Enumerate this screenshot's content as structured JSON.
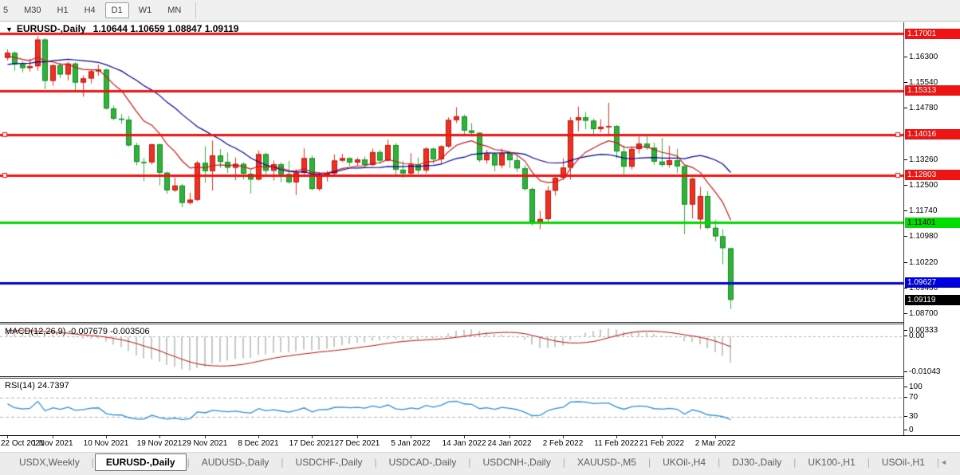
{
  "toolbar": {
    "buttons": [
      "5",
      "M30",
      "H1",
      "H4",
      "D1",
      "W1",
      "MN"
    ],
    "active": "D1"
  },
  "window_title": {
    "dropdown_glyph": "▼",
    "symbol": "EURUSD-,Daily",
    "ohlc": "1.10644 1.10659 1.08847 1.09119"
  },
  "price_axis": {
    "ticks": [
      {
        "text": "1.16300",
        "p": 1.163
      },
      {
        "text": "1.15540",
        "p": 1.1554
      },
      {
        "text": "1.14780",
        "p": 1.1478
      },
      {
        "text": "1.13260",
        "p": 1.1326
      },
      {
        "text": "1.12500",
        "p": 1.125
      },
      {
        "text": "1.11740",
        "p": 1.1174
      },
      {
        "text": "1.10980",
        "p": 1.1098
      },
      {
        "text": "1.10220",
        "p": 1.1022
      },
      {
        "text": "1.09460",
        "p": 1.0946
      },
      {
        "text": "1.08700",
        "p": 1.087
      }
    ],
    "badges": [
      {
        "text": "1.17001",
        "p": 1.17001,
        "bg": "#ee1414",
        "fg": "#ffffff"
      },
      {
        "text": "1.15313",
        "p": 1.15313,
        "bg": "#ee1414",
        "fg": "#ffffff"
      },
      {
        "text": "1.14016",
        "p": 1.14016,
        "bg": "#ee1414",
        "fg": "#ffffff"
      },
      {
        "text": "1.12803",
        "p": 1.12803,
        "bg": "#ee1414",
        "fg": "#ffffff"
      },
      {
        "text": "1.11401",
        "p": 1.11401,
        "bg": "#00dd00",
        "fg": "#000000"
      },
      {
        "text": "1.09627",
        "p": 1.09627,
        "bg": "#0000dd",
        "fg": "#ffffff"
      },
      {
        "text": "1.09119",
        "p": 1.09119,
        "bg": "#000000",
        "fg": "#ffffff"
      }
    ]
  },
  "time_axis": {
    "labels": [
      {
        "text": "22 Oct 2021",
        "i": 0
      },
      {
        "text": "1 Nov 2021",
        "i": 6
      },
      {
        "text": "10 Nov 2021",
        "i": 13
      },
      {
        "text": "19 Nov 2021",
        "i": 20
      },
      {
        "text": "29 Nov 2021",
        "i": 26
      },
      {
        "text": "8 Dec 2021",
        "i": 33
      },
      {
        "text": "17 Dec 2021",
        "i": 40
      },
      {
        "text": "27 Dec 2021",
        "i": 46
      },
      {
        "text": "5 Jan 2022",
        "i": 53
      },
      {
        "text": "14 Jan 2022",
        "i": 60
      },
      {
        "text": "24 Jan 2022",
        "i": 66
      },
      {
        "text": "2 Feb 2022",
        "i": 73
      },
      {
        "text": "11 Feb 2022",
        "i": 80
      },
      {
        "text": "21 Feb 2022",
        "i": 86
      },
      {
        "text": "2 Mar 2022",
        "i": 93
      }
    ]
  },
  "indicators": {
    "macd": {
      "name": "MACD(12,26,9)",
      "main": "-0.007679",
      "signal": "-0.003506",
      "ticks": [
        {
          "text": "0.00333",
          "v": 0.00333
        },
        {
          "text": "0.00",
          "v": 0.0
        },
        {
          "text": "-0.01043",
          "v": -0.01043
        }
      ]
    },
    "rsi": {
      "name": "RSI(14)",
      "value": "24.7397",
      "levels": [
        70,
        30
      ],
      "ticks": [
        {
          "text": "100",
          "v": 100
        },
        {
          "text": "70",
          "v": 70
        },
        {
          "text": "30",
          "v": 30
        },
        {
          "text": "0",
          "v": 0
        }
      ]
    }
  },
  "tabs": {
    "items": [
      "USDX,Weekly",
      "EURUSD-,Daily",
      "AUDUSD-,Daily",
      "USDCHF-,Daily",
      "USDCAD-,Daily",
      "USDCNH-,Daily",
      "XAUUSD-,M5",
      "UKOil-,H4",
      "DJ30-,Daily",
      "UK100-,H1",
      "USOil-,H1"
    ],
    "active_index": 1,
    "scroll_left_glyph": "◄",
    "scroll_right_glyph": "►"
  },
  "colors": {
    "bull_candle": "#ea3323",
    "bull_border": "#bb150a",
    "bear_candle": "#2fb33a",
    "bear_border": "#1d8426",
    "hline_red": "#f21212",
    "hline_green": "#00dd00",
    "hline_blue": "#0000dd",
    "ma_fast": "#c91818",
    "ma_slow": "#000096",
    "macd_bar": "#c8c8c8",
    "macd_signal": "#b40f0f",
    "rsi_line": "#2e8fd6",
    "level_dash": "#b0b0b0"
  },
  "chart_data": {
    "type": "candlestick",
    "symbol": "EURUSD-",
    "timeframe": "Daily",
    "ohlc_current": {
      "o": 1.10644,
      "h": 1.10659,
      "l": 1.08847,
      "c": 1.09119
    },
    "hlines": [
      {
        "p": 1.17001,
        "color": "#f21212",
        "handles": false
      },
      {
        "p": 1.15313,
        "color": "#f21212",
        "handles": false
      },
      {
        "p": 1.14016,
        "color": "#f21212",
        "handles": true
      },
      {
        "p": 1.12803,
        "color": "#f21212",
        "handles": true
      },
      {
        "p": 1.11401,
        "color": "#00dd00",
        "handles": false
      },
      {
        "p": 1.09627,
        "color": "#0000dd",
        "handles": false
      }
    ],
    "ma_fast": {
      "type": "ema",
      "period": 10
    },
    "ma_slow": {
      "type": "sma",
      "period": 21
    },
    "macd_params": [
      12,
      26,
      9
    ],
    "rsi_period": 14,
    "warmup_closes": [
      1.1579,
      1.1562,
      1.1558,
      1.1546,
      1.1551,
      1.1533,
      1.1555,
      1.1586,
      1.1594,
      1.1592,
      1.1559,
      1.1531,
      1.1542,
      1.156,
      1.1601,
      1.1612,
      1.1632,
      1.1654,
      1.1633,
      1.1626,
      1.165,
      1.1655,
      1.1622,
      1.1641,
      1.1649,
      1.1635
    ],
    "candles": [
      [
        1.1628,
        1.1653,
        1.162,
        1.1643
      ],
      [
        1.1643,
        1.1647,
        1.159,
        1.1609
      ],
      [
        1.1609,
        1.1618,
        1.1585,
        1.1598
      ],
      [
        1.1598,
        1.1625,
        1.1587,
        1.1603
      ],
      [
        1.1603,
        1.1692,
        1.159,
        1.1682
      ],
      [
        1.1682,
        1.1687,
        1.1535,
        1.156
      ],
      [
        1.156,
        1.1609,
        1.1545,
        1.1606
      ],
      [
        1.1606,
        1.1614,
        1.1568,
        1.1579
      ],
      [
        1.1579,
        1.1616,
        1.1561,
        1.1611
      ],
      [
        1.1611,
        1.1616,
        1.1527,
        1.1555
      ],
      [
        1.1555,
        1.1576,
        1.1513,
        1.1567
      ],
      [
        1.1567,
        1.1594,
        1.1552,
        1.1588
      ],
      [
        1.1588,
        1.1608,
        1.1575,
        1.1593
      ],
      [
        1.1593,
        1.1595,
        1.1475,
        1.1478
      ],
      [
        1.1478,
        1.1486,
        1.1443,
        1.1448
      ],
      [
        1.1448,
        1.1461,
        1.1433,
        1.1445
      ],
      [
        1.1445,
        1.1456,
        1.1365,
        1.1369
      ],
      [
        1.1369,
        1.1377,
        1.1309,
        1.132
      ],
      [
        1.132,
        1.1332,
        1.1263,
        1.1319
      ],
      [
        1.1319,
        1.1374,
        1.1312,
        1.1372
      ],
      [
        1.1372,
        1.1374,
        1.125,
        1.1288
      ],
      [
        1.1288,
        1.1291,
        1.1226,
        1.1236
      ],
      [
        1.1236,
        1.1274,
        1.1231,
        1.125
      ],
      [
        1.125,
        1.1255,
        1.1186,
        1.1199
      ],
      [
        1.1199,
        1.1229,
        1.1194,
        1.1208
      ],
      [
        1.1208,
        1.1323,
        1.1204,
        1.1317
      ],
      [
        1.1317,
        1.1366,
        1.1258,
        1.1293
      ],
      [
        1.1293,
        1.1383,
        1.1235,
        1.1339
      ],
      [
        1.1339,
        1.1358,
        1.1302,
        1.132
      ],
      [
        1.132,
        1.1348,
        1.1287,
        1.1303
      ],
      [
        1.1303,
        1.1333,
        1.1266,
        1.1314
      ],
      [
        1.1314,
        1.1319,
        1.1268,
        1.1285
      ],
      [
        1.1285,
        1.1296,
        1.1227,
        1.1268
      ],
      [
        1.1268,
        1.1354,
        1.1265,
        1.1343
      ],
      [
        1.1343,
        1.1347,
        1.1283,
        1.1294
      ],
      [
        1.1294,
        1.1324,
        1.1265,
        1.1313
      ],
      [
        1.1313,
        1.1319,
        1.126,
        1.1284
      ],
      [
        1.1284,
        1.1323,
        1.1256,
        1.126
      ],
      [
        1.126,
        1.1298,
        1.1222,
        1.1288
      ],
      [
        1.1288,
        1.136,
        1.1282,
        1.1331
      ],
      [
        1.1331,
        1.1339,
        1.1237,
        1.124
      ],
      [
        1.124,
        1.129,
        1.1234,
        1.128
      ],
      [
        1.128,
        1.1294,
        1.1262,
        1.1286
      ],
      [
        1.1286,
        1.1342,
        1.1279,
        1.1324
      ],
      [
        1.1324,
        1.1344,
        1.132,
        1.1331
      ],
      [
        1.1331,
        1.1333,
        1.1308,
        1.1318
      ],
      [
        1.1318,
        1.1333,
        1.1309,
        1.1327
      ],
      [
        1.1327,
        1.1336,
        1.1304,
        1.1311
      ],
      [
        1.1311,
        1.136,
        1.1307,
        1.1349
      ],
      [
        1.1349,
        1.1356,
        1.1314,
        1.1324
      ],
      [
        1.1324,
        1.1386,
        1.1321,
        1.137
      ],
      [
        1.137,
        1.1376,
        1.1279,
        1.1297
      ],
      [
        1.1297,
        1.1323,
        1.1272,
        1.1286
      ],
      [
        1.1286,
        1.1346,
        1.1278,
        1.1312
      ],
      [
        1.1312,
        1.1333,
        1.1285,
        1.1295
      ],
      [
        1.1295,
        1.1364,
        1.1287,
        1.1359
      ],
      [
        1.1359,
        1.1362,
        1.1315,
        1.1328
      ],
      [
        1.1328,
        1.1369,
        1.1314,
        1.1366
      ],
      [
        1.1366,
        1.1452,
        1.1361,
        1.1444
      ],
      [
        1.1444,
        1.1482,
        1.1435,
        1.1455
      ],
      [
        1.1455,
        1.146,
        1.1399,
        1.1413
      ],
      [
        1.1413,
        1.1435,
        1.1395,
        1.1406
      ],
      [
        1.1406,
        1.1408,
        1.1319,
        1.1325
      ],
      [
        1.1325,
        1.1356,
        1.1315,
        1.1343
      ],
      [
        1.1343,
        1.1348,
        1.1292,
        1.131
      ],
      [
        1.131,
        1.136,
        1.1301,
        1.1345
      ],
      [
        1.1345,
        1.1349,
        1.1302,
        1.1325
      ],
      [
        1.1325,
        1.1339,
        1.1291,
        1.1301
      ],
      [
        1.1301,
        1.131,
        1.1235,
        1.124
      ],
      [
        1.124,
        1.1244,
        1.1131,
        1.1143
      ],
      [
        1.1143,
        1.1175,
        1.1121,
        1.1151
      ],
      [
        1.1151,
        1.1248,
        1.1144,
        1.1235
      ],
      [
        1.1235,
        1.1279,
        1.1221,
        1.1273
      ],
      [
        1.1273,
        1.133,
        1.1267,
        1.1303
      ],
      [
        1.1303,
        1.1452,
        1.1267,
        1.1443
      ],
      [
        1.1443,
        1.1484,
        1.1411,
        1.1452
      ],
      [
        1.1452,
        1.1468,
        1.1417,
        1.1442
      ],
      [
        1.1442,
        1.1448,
        1.1402,
        1.1417
      ],
      [
        1.1417,
        1.1446,
        1.1408,
        1.1424
      ],
      [
        1.1424,
        1.1495,
        1.1396,
        1.1426
      ],
      [
        1.1426,
        1.1429,
        1.1331,
        1.1351
      ],
      [
        1.1351,
        1.1369,
        1.1281,
        1.1306
      ],
      [
        1.1306,
        1.1367,
        1.1298,
        1.1358
      ],
      [
        1.1358,
        1.1395,
        1.1345,
        1.1374
      ],
      [
        1.1374,
        1.1402,
        1.1355,
        1.1362
      ],
      [
        1.1362,
        1.1377,
        1.1312,
        1.1321
      ],
      [
        1.1321,
        1.1391,
        1.1305,
        1.1311
      ],
      [
        1.1311,
        1.1368,
        1.1303,
        1.1325
      ],
      [
        1.1325,
        1.1359,
        1.1287,
        1.1307
      ],
      [
        1.1307,
        1.1308,
        1.1106,
        1.1194
      ],
      [
        1.1194,
        1.1274,
        1.1152,
        1.127
      ],
      [
        1.115,
        1.1246,
        1.1122,
        1.1219
      ],
      [
        1.1219,
        1.1234,
        1.1121,
        1.1125
      ],
      [
        1.1125,
        1.1148,
        1.1085,
        1.11
      ],
      [
        1.11,
        1.1121,
        1.1017,
        1.1065
      ],
      [
        1.10644,
        1.10659,
        1.08847,
        1.09119
      ]
    ]
  }
}
